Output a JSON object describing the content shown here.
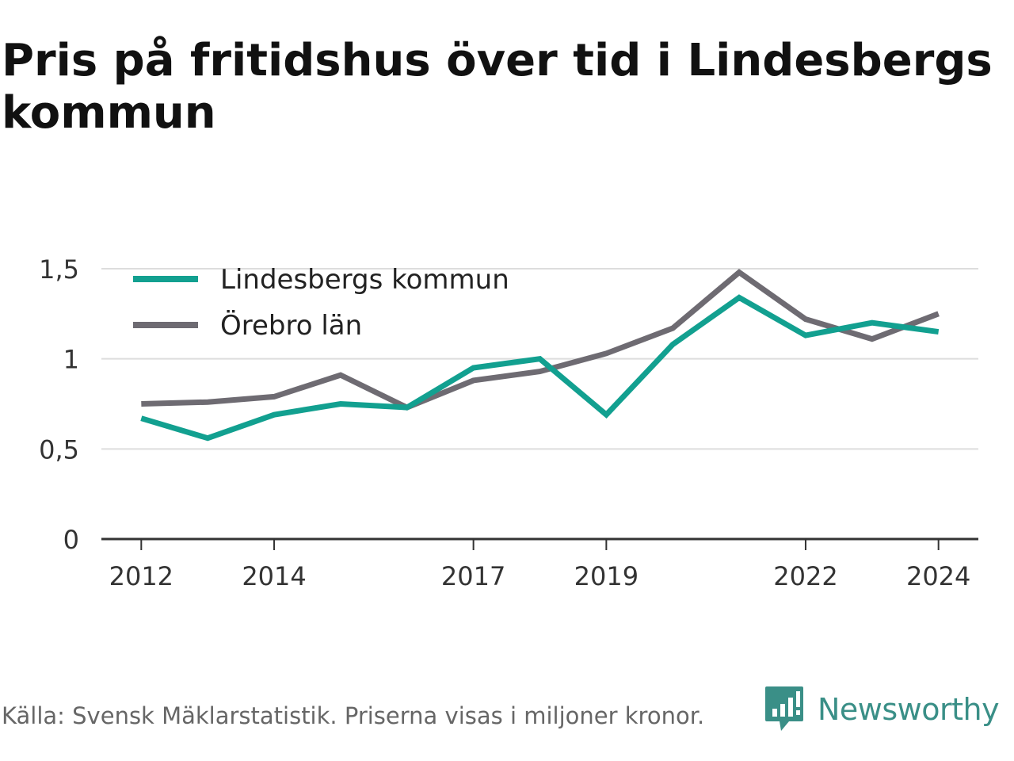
{
  "title": "Pris på fritidshus över tid i Lindesbergs kommun",
  "footer": {
    "source": "Källa: Svensk Mäklarstatistik. Priserna visas i miljoner kronor.",
    "brand": "Newsworthy"
  },
  "colors": {
    "lindesberg": "#12a090",
    "orebro": "#6e6b72",
    "brand": "#3a8f87",
    "grid": "#dddddd",
    "axis": "#333333"
  },
  "chart_data": {
    "type": "line",
    "x": [
      2012,
      2013,
      2014,
      2015,
      2016,
      2017,
      2018,
      2019,
      2020,
      2021,
      2022,
      2023,
      2024
    ],
    "x_tick_labels": [
      "2012",
      "2014",
      "2017",
      "2019",
      "2022",
      "2024"
    ],
    "x_ticks": [
      2012,
      2014,
      2017,
      2019,
      2022,
      2024
    ],
    "y_ticks": [
      0,
      0.5,
      1,
      1.5
    ],
    "y_tick_labels": [
      "0",
      "0,5",
      "1",
      "1,5"
    ],
    "ylim": [
      0,
      1.5
    ],
    "xlim": [
      2011.4,
      2024.6
    ],
    "grid": true,
    "legend_position": "top-left",
    "series": [
      {
        "name": "Lindesbergs kommun",
        "color": "#12a090",
        "values": [
          0.67,
          0.56,
          0.69,
          0.75,
          0.73,
          0.95,
          1.0,
          0.69,
          1.08,
          1.34,
          1.13,
          1.2,
          1.15
        ]
      },
      {
        "name": "Örebro län",
        "color": "#6e6b72",
        "values": [
          0.75,
          0.76,
          0.79,
          0.91,
          0.73,
          0.88,
          0.93,
          1.03,
          1.17,
          1.48,
          1.22,
          1.11,
          1.25
        ]
      }
    ]
  }
}
